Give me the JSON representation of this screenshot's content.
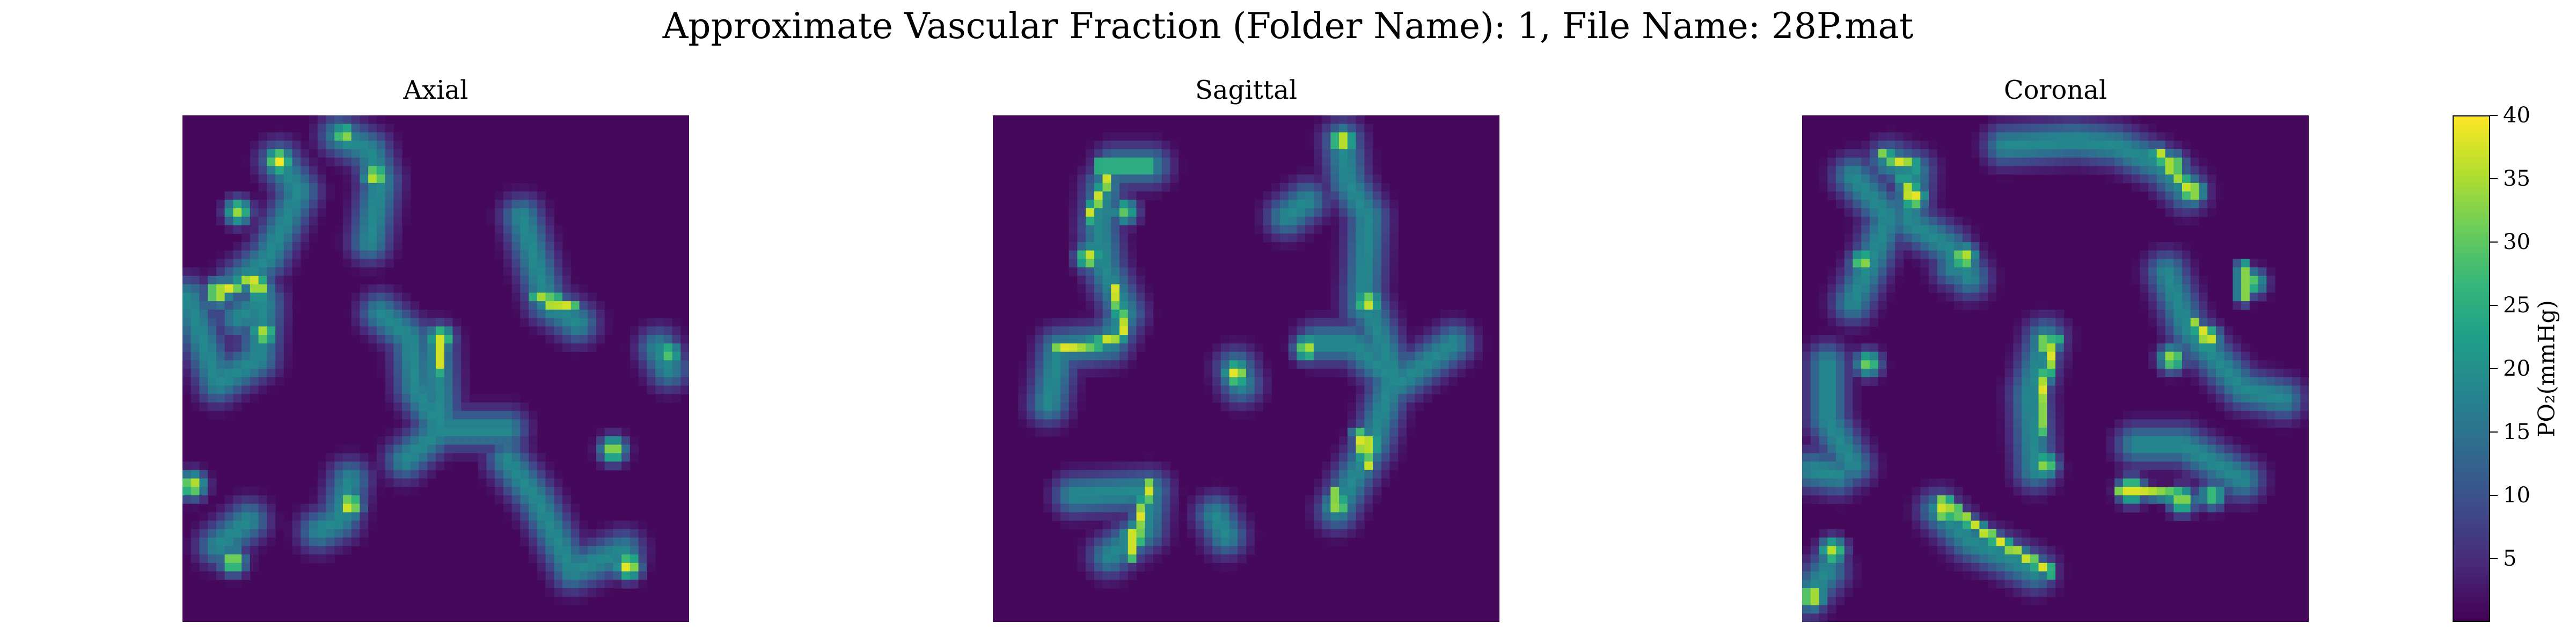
{
  "figure": {
    "title": "Approximate Vascular Fraction (Folder Name): 1, File Name: 28P.mat"
  },
  "panels": [
    {
      "title": "Axial"
    },
    {
      "title": "Sagittal"
    },
    {
      "title": "Coronal"
    }
  ],
  "colorbar": {
    "label": "PO₂(mmHg)",
    "ticks": [
      "5",
      "10",
      "15",
      "20",
      "25",
      "30",
      "35",
      "40"
    ],
    "tick_values": [
      5,
      10,
      15,
      20,
      25,
      30,
      35,
      40
    ],
    "min": 0,
    "max": 40,
    "colormap": "viridis"
  },
  "chart_data": {
    "type": "heatmap",
    "title": "Approximate Vascular Fraction (Folder Name): 1, File Name: 28P.mat",
    "colorbar_label": "PO₂(mmHg)",
    "value_range": [
      0,
      40
    ],
    "colormap": "viridis",
    "grid_size": 60,
    "panels": [
      {
        "title": "Axial",
        "vessels": [
          [
            [
              0.19,
              0.09
            ],
            [
              0.23,
              0.15
            ],
            [
              0.17,
              0.28
            ],
            [
              0.11,
              0.33
            ]
          ],
          [
            [
              0.31,
              0.04
            ],
            [
              0.37,
              0.07
            ],
            [
              0.39,
              0.13
            ],
            [
              0.37,
              0.25
            ]
          ],
          [
            [
              0.11,
              0.4
            ],
            [
              0.16,
              0.37
            ],
            [
              0.15,
              0.48
            ],
            [
              0.07,
              0.53
            ],
            [
              0.01,
              0.36
            ]
          ],
          [
            [
              0.39,
              0.39
            ],
            [
              0.45,
              0.44
            ],
            [
              0.46,
              0.54
            ],
            [
              0.51,
              0.62
            ],
            [
              0.64,
              0.62
            ]
          ],
          [
            [
              0.67,
              0.2
            ],
            [
              0.72,
              0.37
            ],
            [
              0.78,
              0.41
            ]
          ],
          [
            [
              0.5,
              0.45
            ],
            [
              0.51,
              0.62
            ],
            [
              0.44,
              0.68
            ]
          ],
          [
            [
              0.33,
              0.72
            ],
            [
              0.31,
              0.8
            ],
            [
              0.27,
              0.82
            ]
          ],
          [
            [
              0.64,
              0.68
            ],
            [
              0.7,
              0.76
            ],
            [
              0.77,
              0.9
            ],
            [
              0.87,
              0.86
            ]
          ],
          [
            [
              0.94,
              0.46
            ],
            [
              0.96,
              0.5
            ]
          ],
          [
            [
              0.07,
              0.85
            ],
            [
              0.13,
              0.8
            ]
          ]
        ],
        "peaks": [
          [
            0.19,
            0.09,
            40
          ],
          [
            0.38,
            0.12,
            38
          ],
          [
            0.32,
            0.04,
            34
          ],
          [
            0.11,
            0.19,
            34
          ],
          [
            0.07,
            0.35,
            40
          ],
          [
            0.15,
            0.34,
            38
          ],
          [
            0.16,
            0.43,
            36
          ],
          [
            0.73,
            0.37,
            38
          ],
          [
            0.51,
            0.44,
            36
          ],
          [
            0.33,
            0.77,
            40
          ],
          [
            0.02,
            0.73,
            38
          ],
          [
            0.1,
            0.88,
            36
          ],
          [
            0.85,
            0.66,
            36
          ],
          [
            0.88,
            0.89,
            40
          ],
          [
            0.96,
            0.47,
            30
          ]
        ],
        "bright_segments": [
          [
            [
              0.07,
              0.35
            ],
            [
              0.15,
              0.32
            ]
          ],
          [
            [
              0.51,
              0.44
            ],
            [
              0.51,
              0.5
            ]
          ],
          [
            [
              0.7,
              0.36
            ],
            [
              0.77,
              0.38
            ]
          ]
        ]
      },
      {
        "title": "Sagittal",
        "vessels": [
          [
            [
              0.22,
              0.14
            ],
            [
              0.21,
              0.22
            ],
            [
              0.22,
              0.3
            ],
            [
              0.26,
              0.39
            ],
            [
              0.23,
              0.45
            ],
            [
              0.13,
              0.46
            ],
            [
              0.11,
              0.57
            ]
          ],
          [
            [
              0.24,
              0.1
            ],
            [
              0.31,
              0.1
            ]
          ],
          [
            [
              0.16,
              0.75
            ],
            [
              0.31,
              0.74
            ],
            [
              0.3,
              0.82
            ],
            [
              0.23,
              0.87
            ]
          ],
          [
            [
              0.69,
              0.05
            ],
            [
              0.7,
              0.13
            ],
            [
              0.74,
              0.2
            ],
            [
              0.73,
              0.38
            ]
          ],
          [
            [
              0.73,
              0.35
            ],
            [
              0.79,
              0.51
            ],
            [
              0.75,
              0.65
            ],
            [
              0.71,
              0.72
            ],
            [
              0.68,
              0.78
            ]
          ],
          [
            [
              0.64,
              0.45
            ],
            [
              0.71,
              0.45
            ],
            [
              0.8,
              0.53
            ],
            [
              0.91,
              0.45
            ]
          ],
          [
            [
              0.62,
              0.17
            ],
            [
              0.58,
              0.2
            ]
          ],
          [
            [
              0.48,
              0.5
            ],
            [
              0.49,
              0.53
            ]
          ],
          [
            [
              0.44,
              0.79
            ],
            [
              0.46,
              0.83
            ]
          ]
        ],
        "peaks": [
          [
            0.69,
            0.05,
            40
          ],
          [
            0.48,
            0.51,
            40
          ],
          [
            0.62,
            0.46,
            36
          ],
          [
            0.74,
            0.37,
            38
          ],
          [
            0.74,
            0.65,
            40
          ],
          [
            0.68,
            0.77,
            36
          ],
          [
            0.28,
            0.83,
            40
          ],
          [
            0.19,
            0.28,
            38
          ],
          [
            0.26,
            0.19,
            30
          ]
        ],
        "bright_segments": [
          [
            [
              0.21,
              0.1
            ],
            [
              0.31,
              0.1
            ]
          ],
          [
            [
              0.23,
              0.12
            ],
            [
              0.19,
              0.2
            ]
          ],
          [
            [
              0.24,
              0.34
            ],
            [
              0.26,
              0.43
            ],
            [
              0.21,
              0.45
            ],
            [
              0.13,
              0.46
            ]
          ],
          [
            [
              0.72,
              0.63
            ],
            [
              0.74,
              0.69
            ]
          ],
          [
            [
              0.68,
              0.74
            ],
            [
              0.68,
              0.78
            ]
          ],
          [
            [
              0.31,
              0.73
            ],
            [
              0.28,
              0.83
            ],
            [
              0.27,
              0.87
            ]
          ]
        ]
      },
      {
        "title": "Coronal",
        "vessels": [
          [
            [
              0.17,
              0.09
            ],
            [
              0.22,
              0.11
            ],
            [
              0.21,
              0.21
            ],
            [
              0.29,
              0.26
            ],
            [
              0.33,
              0.32
            ]
          ],
          [
            [
              0.1,
              0.12
            ],
            [
              0.17,
              0.2
            ],
            [
              0.14,
              0.28
            ],
            [
              0.1,
              0.37
            ]
          ],
          [
            [
              0.4,
              0.06
            ],
            [
              0.54,
              0.05
            ],
            [
              0.62,
              0.06
            ],
            [
              0.71,
              0.1
            ],
            [
              0.76,
              0.15
            ]
          ],
          [
            [
              0.3,
              0.3
            ],
            [
              0.31,
              0.29
            ]
          ],
          [
            [
              0.05,
              0.49
            ],
            [
              0.05,
              0.6
            ],
            [
              0.1,
              0.69
            ]
          ],
          [
            [
              0.48,
              0.44
            ],
            [
              0.45,
              0.55
            ],
            [
              0.46,
              0.7
            ]
          ],
          [
            [
              0.72,
              0.31
            ],
            [
              0.76,
              0.42
            ],
            [
              0.87,
              0.54
            ],
            [
              0.95,
              0.56
            ]
          ],
          [
            [
              0.66,
              0.65
            ],
            [
              0.75,
              0.65
            ],
            [
              0.82,
              0.69
            ],
            [
              0.87,
              0.72
            ]
          ],
          [
            [
              0.27,
              0.78
            ],
            [
              0.33,
              0.84
            ],
            [
              0.4,
              0.87
            ],
            [
              0.46,
              0.9
            ]
          ],
          [
            [
              0.02,
              0.7
            ],
            [
              0.07,
              0.71
            ]
          ],
          [
            [
              0.01,
              0.95
            ],
            [
              0.05,
              0.9
            ]
          ]
        ],
        "peaks": [
          [
            0.22,
            0.16,
            40
          ],
          [
            0.32,
            0.28,
            38
          ],
          [
            0.12,
            0.29,
            34
          ],
          [
            0.13,
            0.49,
            32
          ],
          [
            0.73,
            0.1,
            40
          ],
          [
            0.77,
            0.15,
            38
          ],
          [
            0.48,
            0.45,
            36
          ],
          [
            0.48,
            0.69,
            34
          ],
          [
            0.8,
            0.44,
            38
          ],
          [
            0.73,
            0.48,
            36
          ],
          [
            0.65,
            0.74,
            40
          ],
          [
            0.75,
            0.76,
            36
          ],
          [
            0.81,
            0.75,
            30
          ],
          [
            0.28,
            0.78,
            40
          ],
          [
            0.06,
            0.86,
            36
          ],
          [
            0.02,
            0.95,
            40
          ],
          [
            0.89,
            0.33,
            30
          ]
        ],
        "bright_segments": [
          [
            [
              0.16,
              0.08
            ],
            [
              0.22,
              0.1
            ]
          ],
          [
            [
              0.2,
              0.13
            ],
            [
              0.22,
              0.18
            ]
          ],
          [
            [
              0.5,
              0.44
            ],
            [
              0.47,
              0.56
            ],
            [
              0.47,
              0.62
            ]
          ],
          [
            [
              0.7,
              0.07
            ],
            [
              0.76,
              0.14
            ]
          ],
          [
            [
              0.28,
              0.76
            ],
            [
              0.34,
              0.81
            ],
            [
              0.42,
              0.86
            ],
            [
              0.49,
              0.9
            ]
          ],
          [
            [
              0.63,
              0.74
            ],
            [
              0.75,
              0.75
            ]
          ],
          [
            [
              0.77,
              0.41
            ],
            [
              0.81,
              0.44
            ]
          ],
          [
            [
              0.87,
              0.3
            ],
            [
              0.87,
              0.36
            ]
          ]
        ]
      }
    ]
  }
}
